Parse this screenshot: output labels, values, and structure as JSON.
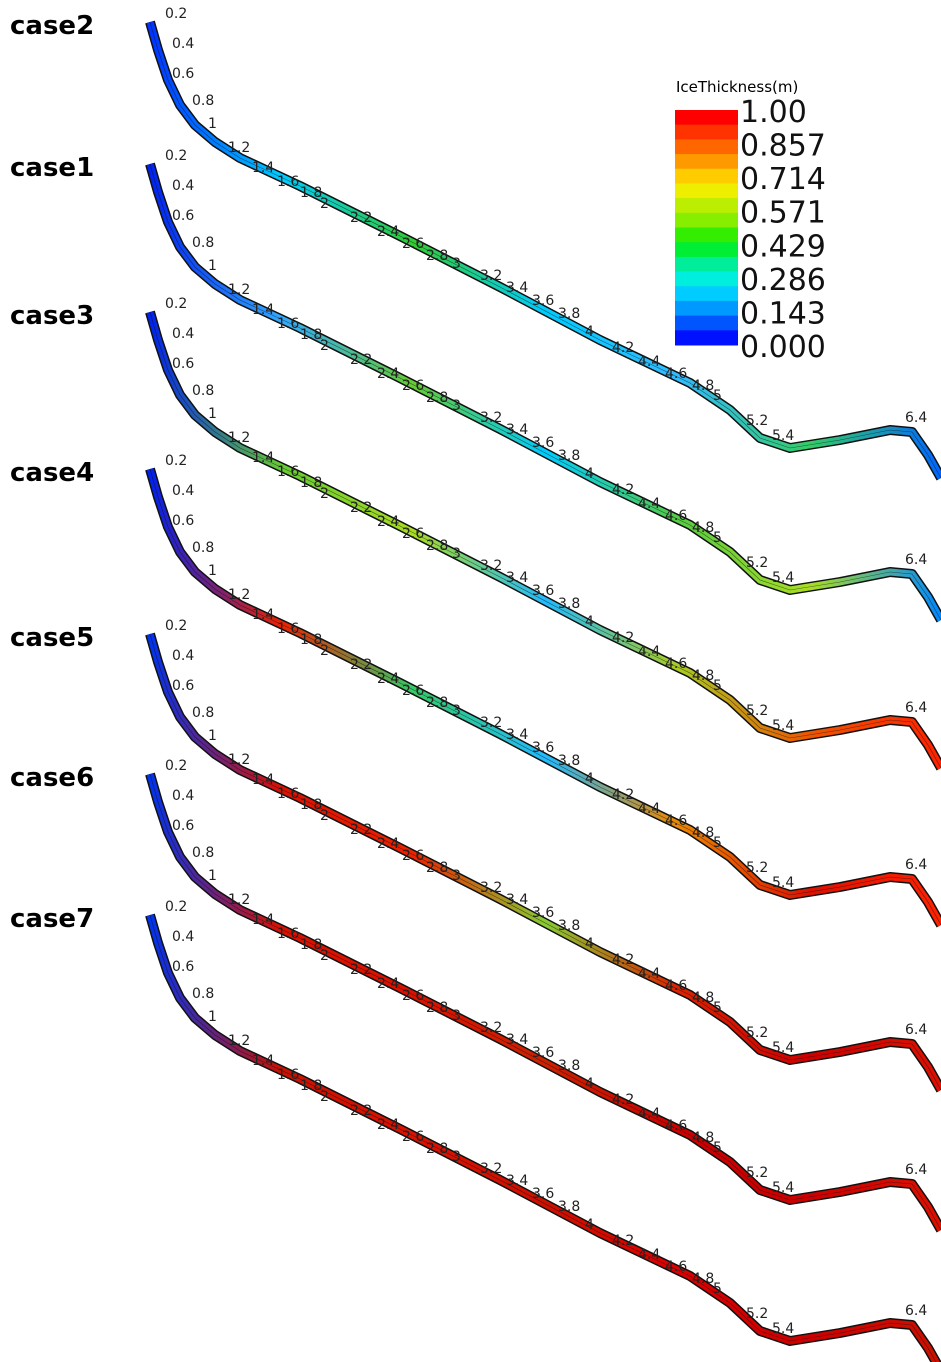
{
  "legend": {
    "title": "IceThickness(m)",
    "labels": [
      "1.00",
      "0.857",
      "0.714",
      "0.571",
      "0.429",
      "0.286",
      "0.143",
      "0.000"
    ]
  },
  "panels": [
    {
      "label": "case2"
    },
    {
      "label": "case1"
    },
    {
      "label": "case3"
    },
    {
      "label": "case4"
    },
    {
      "label": "case5"
    },
    {
      "label": "case6"
    },
    {
      "label": "case7"
    }
  ],
  "stations": [
    "0.2",
    "0.4",
    "0.6",
    "0.8",
    "1",
    "1.2",
    "1.4",
    "1.6",
    "1.8",
    "2",
    "2.2",
    "2.4",
    "2.6",
    "2.8",
    "3",
    "3.2",
    "3.4",
    "3.6",
    "3.8",
    "4",
    "4.2",
    "4.4",
    "4.6",
    "4.8",
    "5",
    "5.2",
    "5.4",
    "6.4"
  ]
}
